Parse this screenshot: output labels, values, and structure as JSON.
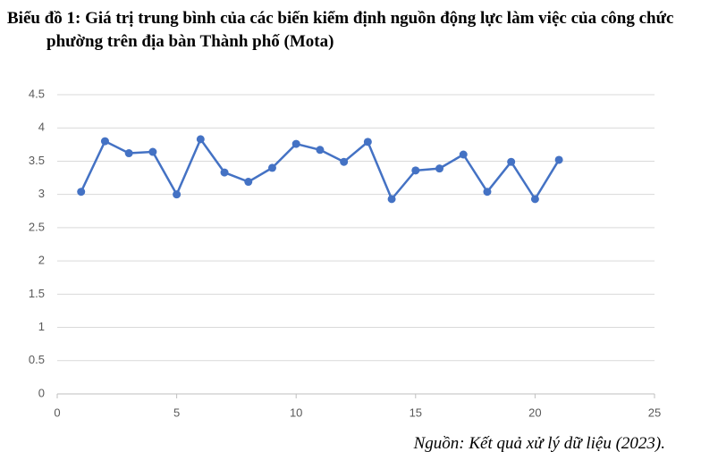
{
  "chart_data": {
    "type": "line",
    "title": "Biểu đồ 1: Giá trị trung bình của các biến kiểm định nguồn động lực làm việc của công chức phường trên địa bàn Thành phố (Mota)",
    "source": "Nguồn: Kết quả xử lý dữ liệu (2023).",
    "x": [
      1,
      2,
      3,
      4,
      5,
      6,
      7,
      8,
      9,
      10,
      11,
      12,
      13,
      14,
      15,
      16,
      17,
      18,
      19,
      20,
      21
    ],
    "values": [
      3.04,
      3.8,
      3.62,
      3.64,
      3.0,
      3.83,
      3.33,
      3.19,
      3.4,
      3.76,
      3.67,
      3.49,
      3.79,
      2.93,
      3.36,
      3.39,
      3.6,
      3.04,
      3.49,
      2.93,
      3.52
    ],
    "color": "#4472c4",
    "xlim": [
      0,
      25
    ],
    "xticks": [
      0,
      5,
      10,
      15,
      20,
      25
    ],
    "ylim": [
      0,
      4.5
    ],
    "yticks": [
      0,
      0.5,
      1,
      1.5,
      2,
      2.5,
      3,
      3.5,
      4,
      4.5
    ],
    "grid": true
  }
}
